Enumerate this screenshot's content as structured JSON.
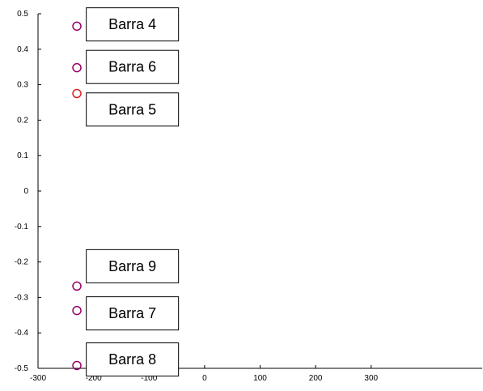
{
  "chart_data": {
    "type": "scatter",
    "title": "",
    "xlabel": "",
    "ylabel": "",
    "xlim": [
      -300,
      500
    ],
    "ylim": [
      -0.5,
      0.5
    ],
    "grid": false,
    "x_ticks": [
      -300,
      -200,
      -100,
      0,
      100,
      200,
      300
    ],
    "x_tick_labels": [
      "-300",
      "-200",
      "-100",
      "0",
      "100",
      "200",
      "300"
    ],
    "y_ticks": [
      0.5,
      0.4,
      0.3,
      0.2,
      0.1,
      0,
      -0.1,
      -0.2,
      -0.3,
      -0.4,
      -0.5
    ],
    "y_tick_labels": [
      "0.5",
      "0.4",
      "0.3",
      "0.2",
      "0.1",
      "0",
      "-0.1",
      "-0.2",
      "-0.3",
      "-0.4",
      "-0.5"
    ],
    "points": [
      {
        "x": -230,
        "y": 0.465,
        "color": "#990066"
      },
      {
        "x": -230,
        "y": 0.348,
        "color": "#990066"
      },
      {
        "x": -230,
        "y": 0.275,
        "color": "#dd2222"
      },
      {
        "x": -230,
        "y": -0.268,
        "color": "#990066"
      },
      {
        "x": -230,
        "y": -0.337,
        "color": "#990066"
      },
      {
        "x": -230,
        "y": -0.492,
        "color": "#990066"
      }
    ],
    "annotations": [
      {
        "text": "Barra 4",
        "x": -130,
        "y": 0.47
      },
      {
        "text": "Barra 6",
        "x": -130,
        "y": 0.35
      },
      {
        "text": "Barra 5",
        "x": -130,
        "y": 0.23
      },
      {
        "text": "Barra 9",
        "x": -130,
        "y": -0.212
      },
      {
        "text": "Barra 7",
        "x": -130,
        "y": -0.345
      },
      {
        "text": "Barra 8",
        "x": -130,
        "y": -0.475
      }
    ]
  }
}
